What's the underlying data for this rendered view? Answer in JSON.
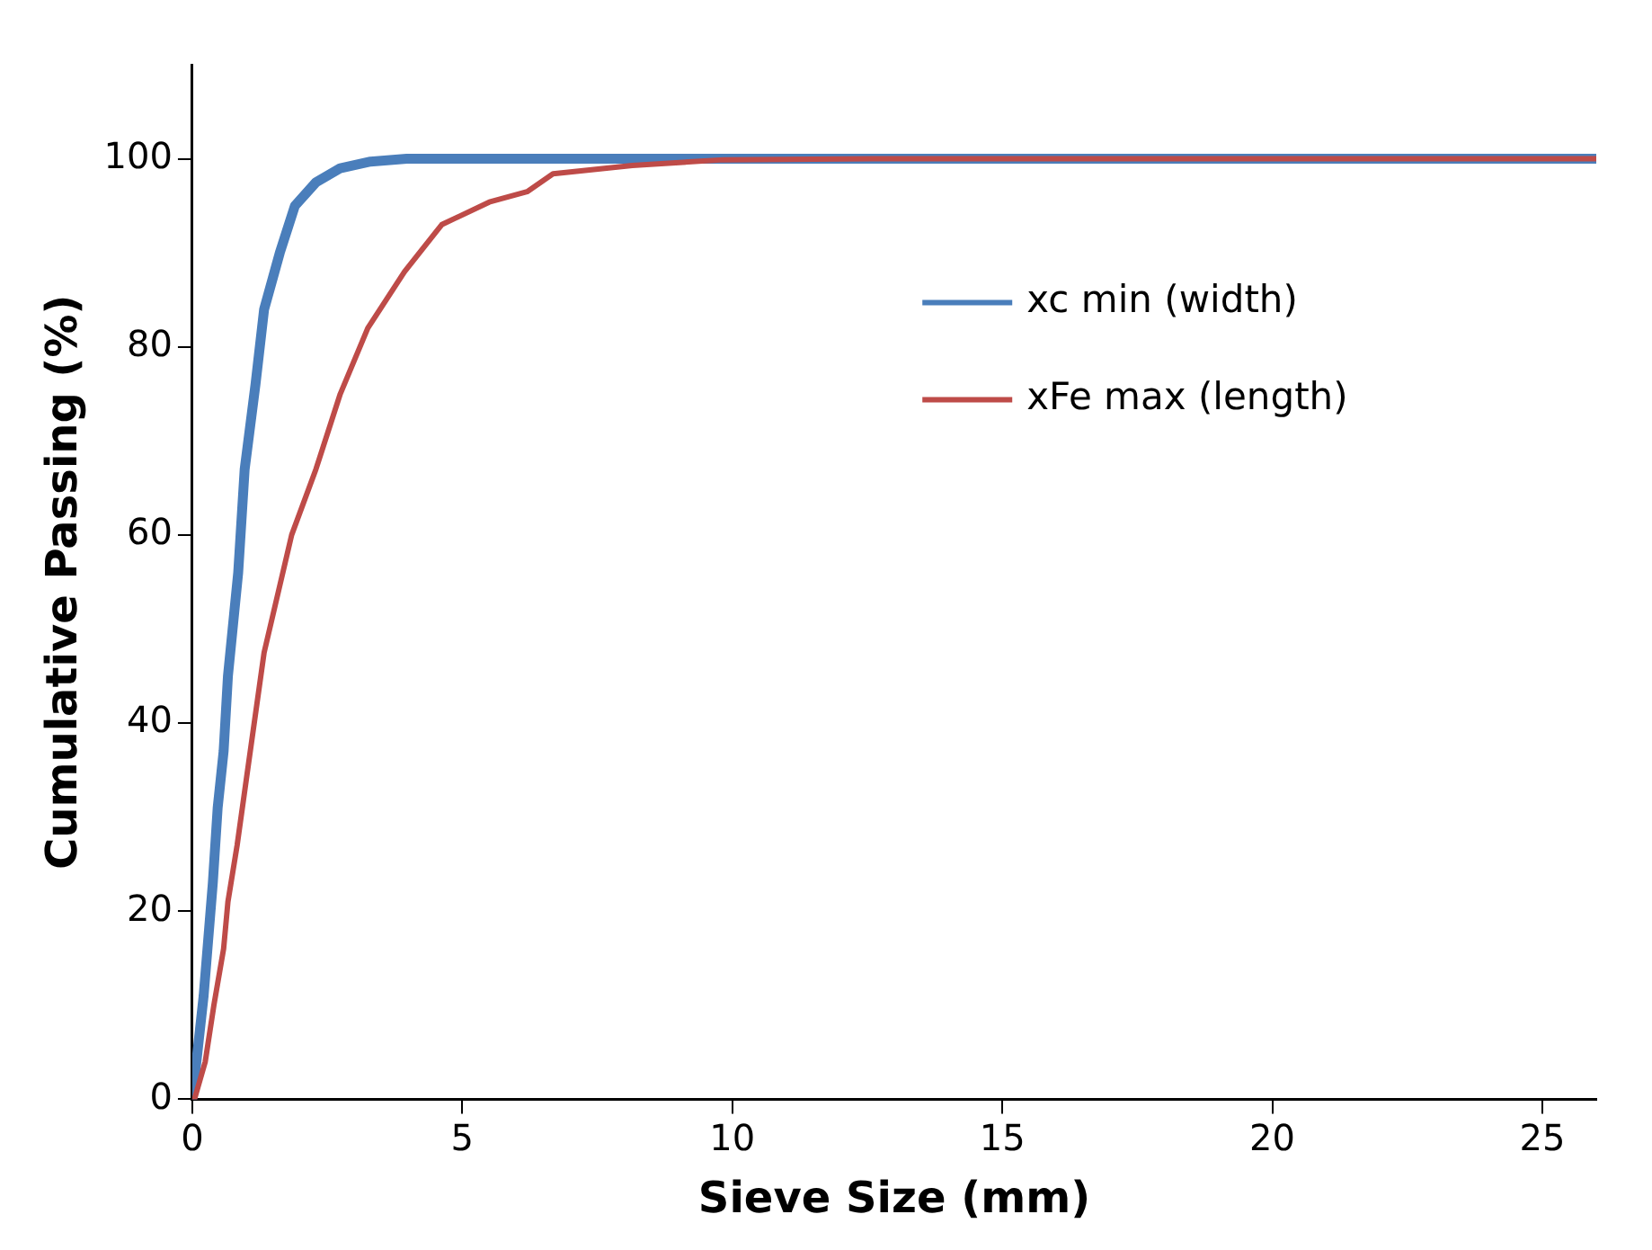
{
  "chart_data": {
    "type": "line",
    "xlabel": "Sieve Size (mm)",
    "ylabel": "Cumulative Passing (%)",
    "xlim": [
      0,
      26
    ],
    "xticks": [
      0,
      5,
      10,
      15,
      20,
      25
    ],
    "ylim": [
      0,
      110
    ],
    "yticks": [
      0,
      20,
      40,
      60,
      80,
      100
    ],
    "grid": false,
    "legend": "right",
    "marker": "none",
    "line_style": "solid",
    "series": [
      {
        "name": "xc min (width)",
        "color": "#4a7ebb",
        "x": [
          0,
          0.21,
          0.38,
          0.47,
          0.58,
          0.66,
          0.85,
          0.97,
          1.17,
          1.33,
          1.62,
          1.9,
          2.29,
          2.74,
          3.3,
          3.97,
          26
        ],
        "values": [
          0,
          11,
          23,
          31,
          37,
          45,
          56,
          67,
          76,
          84,
          90,
          95,
          97.5,
          99,
          99.7,
          100,
          100
        ]
      },
      {
        "name": "xFe max (length)",
        "color": "#be4b48",
        "x": [
          0.04,
          0.24,
          0.4,
          0.58,
          0.66,
          0.83,
          1,
          1.33,
          1.84,
          2.29,
          2.74,
          3.25,
          3.93,
          4.62,
          5.5,
          6.2,
          6.68,
          8.15,
          9.84,
          12.6,
          26
        ],
        "values": [
          0,
          4,
          10,
          16,
          21,
          27,
          34,
          47.5,
          60,
          67,
          75,
          82,
          88,
          93,
          95.4,
          96.5,
          98.4,
          99.3,
          99.9,
          100,
          100
        ]
      }
    ]
  }
}
